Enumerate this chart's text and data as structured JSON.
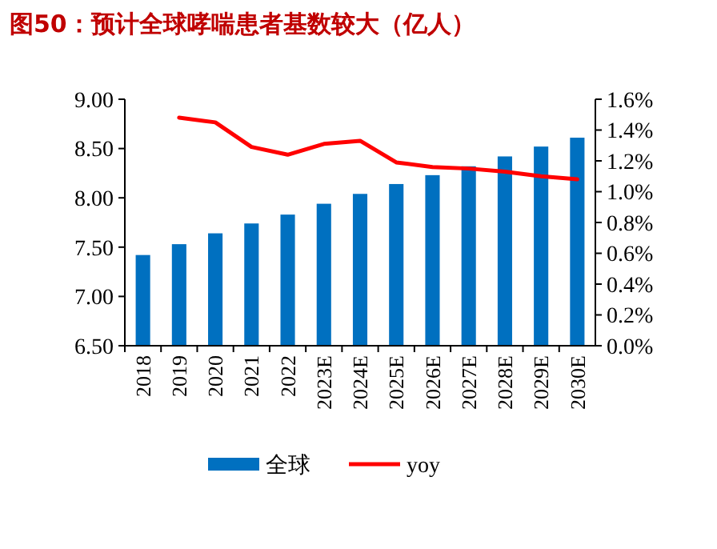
{
  "chart_data": {
    "type": "bar",
    "title": "图50：预计全球哮喘患者基数较大（亿人）",
    "categories": [
      "2018",
      "2019",
      "2020",
      "2021",
      "2022",
      "2023E",
      "2024E",
      "2025E",
      "2026E",
      "2027E",
      "2028E",
      "2029E",
      "2030E"
    ],
    "series": [
      {
        "name": "全球",
        "color": "#0070c0",
        "values": [
          7.42,
          7.53,
          7.64,
          7.74,
          7.83,
          7.94,
          8.04,
          8.14,
          8.23,
          8.32,
          8.42,
          8.52,
          8.61
        ]
      },
      {
        "name": "yoy",
        "type": "line",
        "axis": "y2",
        "color": "#ff0000",
        "values": [
          null,
          1.48,
          1.45,
          1.29,
          1.24,
          1.31,
          1.33,
          1.19,
          1.16,
          1.15,
          1.13,
          1.1,
          1.08
        ]
      }
    ],
    "ylim": [
      6.5,
      9.0
    ],
    "yticks": [
      {
        "value": 6.5,
        "label": "6.50"
      },
      {
        "value": 7,
        "label": "7.00"
      },
      {
        "value": 7.5,
        "label": "7.50"
      },
      {
        "value": 8,
        "label": "8.00"
      },
      {
        "value": 8.5,
        "label": "8.50"
      },
      {
        "value": 9,
        "label": "9.00"
      }
    ],
    "y2lim": [
      0,
      1.6
    ],
    "y2ticks": [
      {
        "value": 0,
        "label": "0.0%"
      },
      {
        "value": 0.2,
        "label": "0.2%"
      },
      {
        "value": 0.4,
        "label": "0.4%"
      },
      {
        "value": 0.6,
        "label": "0.6%"
      },
      {
        "value": 0.8,
        "label": "0.8%"
      },
      {
        "value": 1.0,
        "label": "1.0%"
      },
      {
        "value": 1.2,
        "label": "1.2%"
      },
      {
        "value": 1.4,
        "label": "1.4%"
      },
      {
        "value": 1.6,
        "label": "1.6%"
      }
    ],
    "legend": "bottom",
    "grid": false
  }
}
